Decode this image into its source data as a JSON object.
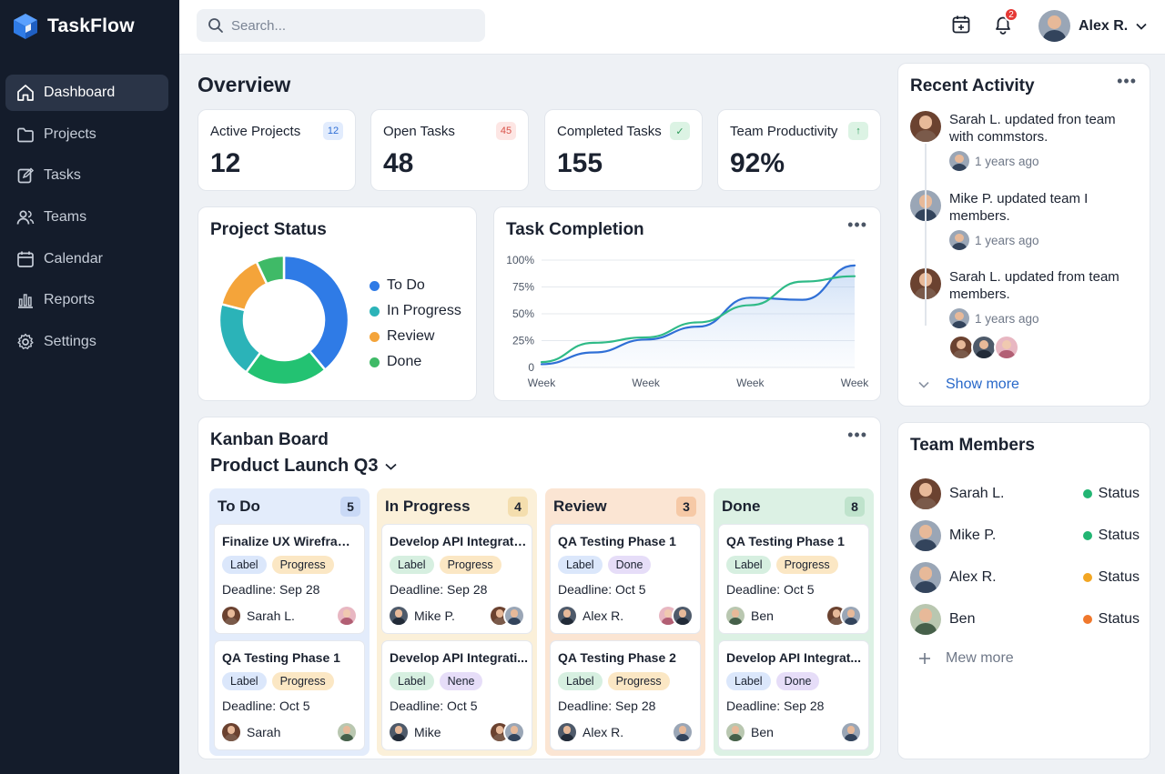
{
  "app": {
    "name": "TaskFlow",
    "accent": "#2f7be6"
  },
  "sidebar": {
    "items": [
      {
        "label": "Dashboard",
        "icon": "home-icon",
        "active": true
      },
      {
        "label": "Projects",
        "icon": "folder-icon"
      },
      {
        "label": "Tasks",
        "icon": "edit-icon"
      },
      {
        "label": "Teams",
        "icon": "users-icon"
      },
      {
        "label": "Calendar",
        "icon": "calendar-icon"
      },
      {
        "label": "Reports",
        "icon": "bar-chart-icon"
      },
      {
        "label": "Settings",
        "icon": "gear-icon"
      }
    ]
  },
  "topbar": {
    "search_placeholder": "Search...",
    "notification_count": "2",
    "user_name": "Alex R."
  },
  "overview": {
    "title": "Overview",
    "stats": [
      {
        "label": "Active Projects",
        "value": "12",
        "badge": "12",
        "badge_color": "#e2ecfd",
        "badge_text": "#2f6fd6"
      },
      {
        "label": "Open Tasks",
        "value": "48",
        "badge": "45",
        "badge_color": "#fde6e4",
        "badge_text": "#d9534a"
      },
      {
        "label": "Completed Tasks",
        "value": "155",
        "badge": "✓",
        "badge_color": "#dcf3e4",
        "badge_text": "#2c9a58"
      },
      {
        "label": "Team Productivity",
        "value": "92%",
        "badge": "↑",
        "badge_color": "#dcf3e4",
        "badge_text": "#2c9a58"
      }
    ]
  },
  "project_status": {
    "title": "Project Status",
    "legend": [
      {
        "label": "To Do",
        "color": "#2f7be6"
      },
      {
        "label": "In Progress",
        "color": "#2bb3b8"
      },
      {
        "label": "Review",
        "color": "#f4a43a"
      },
      {
        "label": "Done",
        "color": "#3fba67"
      }
    ]
  },
  "chart_data": [
    {
      "type": "pie",
      "title": "Project Status",
      "categories": [
        "To Do",
        "Done",
        "In Progress",
        "Review",
        "Done"
      ],
      "values": [
        39,
        21,
        19,
        14,
        7
      ],
      "colors": [
        "#2f7be6",
        "#23c272",
        "#2bb3b8",
        "#f4a43a",
        "#3fba67"
      ],
      "donut": true
    },
    {
      "type": "area",
      "title": "Task Completion",
      "categories": [
        "Week",
        "Week",
        "Week",
        "Week"
      ],
      "x": [
        0,
        0.5,
        1,
        1.5,
        2,
        2.5,
        3
      ],
      "series": [
        {
          "values": [
            3,
            14,
            26,
            38,
            65,
            63,
            95
          ],
          "color": "#2f6fd6"
        },
        {
          "values": [
            5,
            23,
            28,
            42,
            58,
            80,
            85
          ],
          "color": "#2fba87"
        }
      ],
      "yticks": [
        "0",
        "25%",
        "50%",
        "75%",
        "100%"
      ],
      "ylim": [
        0,
        100
      ],
      "grid": true
    }
  ],
  "task_completion": {
    "title": "Task Completion",
    "yticks": [
      "0",
      "25%",
      "50%",
      "75%",
      "100%"
    ],
    "xticks": [
      "Week",
      "Week",
      "Week",
      "Week"
    ]
  },
  "kanban": {
    "title": "Kanban Board",
    "project": "Product Launch Q3",
    "columns": [
      {
        "name": "To Do",
        "count": "5",
        "bg": "#e3ecfb",
        "count_bg": "#c9d9f6",
        "tasks": [
          {
            "title": "Finalize UX Wireframes",
            "tags": [
              {
                "t": "Label",
                "c": "blue"
              },
              {
                "t": "Progress",
                "c": "yellow"
              }
            ],
            "deadline": "Deadline: Sep 28",
            "assignee": "Sarah L.",
            "av": "f",
            "extra": [
              "p"
            ]
          },
          {
            "title": "QA Testing Phase 1",
            "tags": [
              {
                "t": "Label",
                "c": "blue"
              },
              {
                "t": "Progress",
                "c": "yellow"
              }
            ],
            "deadline": "Deadline: Oct 5",
            "assignee": "Sarah",
            "av": "f",
            "extra": [
              "g"
            ]
          }
        ]
      },
      {
        "name": "In Progress",
        "count": "4",
        "bg": "#fbf0d9",
        "count_bg": "#f4deae",
        "tasks": [
          {
            "title": "Develop API Integration",
            "tags": [
              {
                "t": "Label",
                "c": "green"
              },
              {
                "t": "Progress",
                "c": "yellow"
              }
            ],
            "deadline": "Deadline: Sep 28",
            "assignee": "Mike P.",
            "av": "k",
            "extra": [
              "f",
              "m"
            ]
          },
          {
            "title": "Develop API Integrati...",
            "tags": [
              {
                "t": "Label",
                "c": "green"
              },
              {
                "t": "Nene",
                "c": "purple"
              }
            ],
            "deadline": "Deadline: Oct 5",
            "assignee": "Mike",
            "av": "k",
            "extra": [
              "f",
              "m"
            ]
          }
        ]
      },
      {
        "name": "Review",
        "count": "3",
        "bg": "#fbe5d3",
        "count_bg": "#f6c9a6",
        "tasks": [
          {
            "title": "QA Testing Phase 1",
            "tags": [
              {
                "t": "Label",
                "c": "blue"
              },
              {
                "t": "Done",
                "c": "purple"
              }
            ],
            "deadline": "Deadline: Oct 5",
            "assignee": "Alex R.",
            "av": "k",
            "extra": [
              "p",
              "k"
            ]
          },
          {
            "title": "QA Testing Phase 2",
            "tags": [
              {
                "t": "Label",
                "c": "green"
              },
              {
                "t": "Progress",
                "c": "yellow"
              }
            ],
            "deadline": "Deadline: Sep 28",
            "assignee": "Alex R.",
            "av": "k",
            "extra": [
              "m"
            ]
          }
        ]
      },
      {
        "name": "Done",
        "count": "8",
        "bg": "#dcf1e4",
        "count_bg": "#bfe3cc",
        "tasks": [
          {
            "title": "QA Testing Phase 1",
            "tags": [
              {
                "t": "Label",
                "c": "green"
              },
              {
                "t": "Progress",
                "c": "yellow"
              }
            ],
            "deadline": "Deadline: Oct 5",
            "assignee": "Ben",
            "av": "g",
            "extra": [
              "f",
              "m"
            ]
          },
          {
            "title": "Develop API Integrat...",
            "tags": [
              {
                "t": "Label",
                "c": "blue"
              },
              {
                "t": "Done",
                "c": "purple"
              }
            ],
            "deadline": "Deadline: Sep 28",
            "assignee": "Ben",
            "av": "g",
            "extra": [
              "m"
            ]
          }
        ]
      }
    ]
  },
  "activity": {
    "title": "Recent Activity",
    "items": [
      {
        "text": "Sarah L. updated fron team with commstors.",
        "time": "1 years ago",
        "av": "f"
      },
      {
        "text": "Mike P. updated team I members.",
        "time": "1 years ago",
        "av": "m"
      },
      {
        "text": "Sarah L. updated from team members.",
        "time": "1 years ago",
        "av": "f"
      }
    ],
    "show_more": "Show more"
  },
  "team": {
    "title": "Team Members",
    "members": [
      {
        "name": "Sarah L.",
        "status": "Status",
        "color": "#22b573",
        "av": "f"
      },
      {
        "name": "Mike P.",
        "status": "Status",
        "color": "#22b573",
        "av": "m"
      },
      {
        "name": "Alex R.",
        "status": "Status",
        "color": "#f2a623",
        "av": "m"
      },
      {
        "name": "Ben",
        "status": "Status",
        "color": "#f0782c",
        "av": "g"
      }
    ],
    "add_more": "Mew more"
  }
}
